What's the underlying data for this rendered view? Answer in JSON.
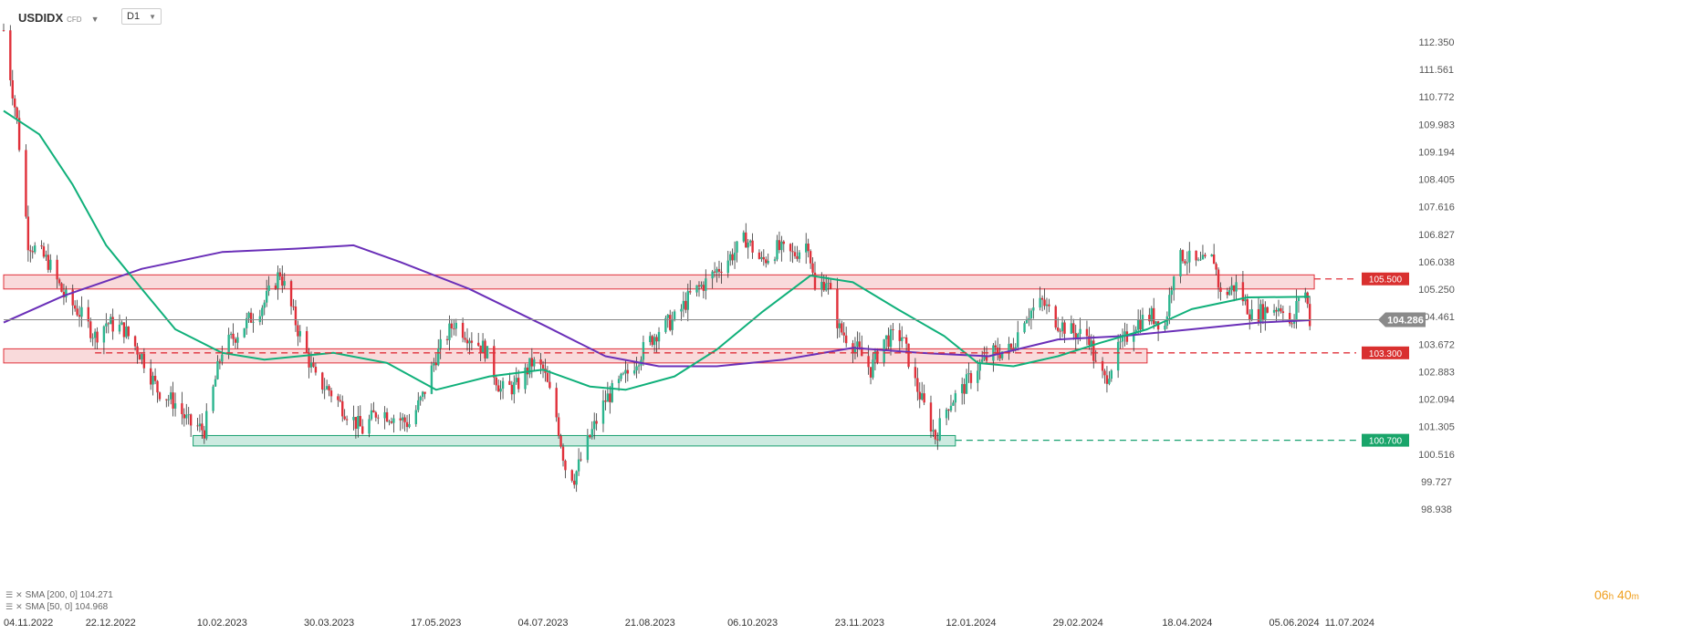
{
  "toolbar": {
    "symbol": "USDIDX",
    "symbol_tag": "CFD",
    "timeframe": "D1"
  },
  "legend": {
    "sma200": "SMA [200, 0] 104.271",
    "sma50": "SMA [50, 0] 104.968"
  },
  "countdown": {
    "hours": "06",
    "hours_unit": "h",
    "minutes": "40",
    "minutes_unit": "m"
  },
  "colors": {
    "bull": "#2bb58e",
    "bear": "#e0303a",
    "sma200": "#6a2fb8",
    "sma50": "#10b07a",
    "resistance": "#e0303a",
    "support": "#18a070",
    "last_price_bg": "#8a8a8a"
  },
  "chart_data": {
    "type": "candlestick",
    "instrument": "USDIDX",
    "timeframe": "D1",
    "y_range": [
      98.6,
      113.2
    ],
    "y_ticks": [
      "112.350",
      "111.561",
      "110.772",
      "109.983",
      "109.194",
      "108.405",
      "107.616",
      "106.827",
      "106.038",
      "105.250",
      "104.461",
      "103.672",
      "102.883",
      "102.094",
      "101.305",
      "100.516",
      "99.727",
      "98.938"
    ],
    "x_range": [
      "2022-11-04",
      "2024-07-11"
    ],
    "x_ticks": [
      {
        "date": "2022-11-04",
        "label": "04.11.2022"
      },
      {
        "date": "2022-12-22",
        "label": "22.12.2022"
      },
      {
        "date": "2023-02-10",
        "label": "10.02.2023"
      },
      {
        "date": "2023-03-30",
        "label": "30.03.2023"
      },
      {
        "date": "2023-05-17",
        "label": "17.05.2023"
      },
      {
        "date": "2023-07-04",
        "label": "04.07.2023"
      },
      {
        "date": "2023-08-21",
        "label": "21.08.2023"
      },
      {
        "date": "2023-10-06",
        "label": "06.10.2023"
      },
      {
        "date": "2023-11-23",
        "label": "23.11.2023"
      },
      {
        "date": "2024-01-12",
        "label": "12.01.2024"
      },
      {
        "date": "2024-02-29",
        "label": "29.02.2024"
      },
      {
        "date": "2024-04-18",
        "label": "18.04.2024"
      },
      {
        "date": "2024-06-05",
        "label": "05.06.2024"
      },
      {
        "date": "2024-07-11",
        "label": "11.07.2024"
      }
    ],
    "price_path": [
      [
        "2022-11-04",
        112.9
      ],
      [
        "2022-11-10",
        110.2
      ],
      [
        "2022-11-15",
        106.6
      ],
      [
        "2022-11-24",
        106.0
      ],
      [
        "2022-12-01",
        105.0
      ],
      [
        "2022-12-08",
        104.5
      ],
      [
        "2022-12-15",
        103.8
      ],
      [
        "2022-12-20",
        104.2
      ],
      [
        "2022-12-28",
        104.0
      ],
      [
        "2023-01-05",
        103.2
      ],
      [
        "2023-01-12",
        102.2
      ],
      [
        "2023-01-20",
        101.8
      ],
      [
        "2023-01-26",
        101.2
      ],
      [
        "2023-02-02",
        101.0
      ],
      [
        "2023-02-10",
        103.4
      ],
      [
        "2023-02-17",
        103.9
      ],
      [
        "2023-03-01",
        104.8
      ],
      [
        "2023-03-08",
        105.7
      ],
      [
        "2023-03-16",
        104.0
      ],
      [
        "2023-03-24",
        102.5
      ],
      [
        "2023-03-30",
        102.2
      ],
      [
        "2023-04-06",
        101.6
      ],
      [
        "2023-04-14",
        101.0
      ],
      [
        "2023-04-21",
        101.6
      ],
      [
        "2023-04-28",
        101.4
      ],
      [
        "2023-05-05",
        101.2
      ],
      [
        "2023-05-11",
        102.0
      ],
      [
        "2023-05-17",
        103.2
      ],
      [
        "2023-05-25",
        104.2
      ],
      [
        "2023-06-01",
        103.8
      ],
      [
        "2023-06-08",
        103.4
      ],
      [
        "2023-06-15",
        102.2
      ],
      [
        "2023-06-22",
        102.3
      ],
      [
        "2023-06-29",
        103.0
      ],
      [
        "2023-07-04",
        102.8
      ],
      [
        "2023-07-10",
        101.4
      ],
      [
        "2023-07-14",
        99.9
      ],
      [
        "2023-07-18",
        99.6
      ],
      [
        "2023-07-25",
        100.8
      ],
      [
        "2023-08-01",
        101.9
      ],
      [
        "2023-08-10",
        102.6
      ],
      [
        "2023-08-18",
        103.4
      ],
      [
        "2023-08-25",
        104.0
      ],
      [
        "2023-09-01",
        104.3
      ],
      [
        "2023-09-08",
        105.0
      ],
      [
        "2023-09-15",
        105.4
      ],
      [
        "2023-09-22",
        105.9
      ],
      [
        "2023-09-28",
        106.3
      ],
      [
        "2023-10-03",
        106.7
      ],
      [
        "2023-10-10",
        106.0
      ],
      [
        "2023-10-17",
        106.4
      ],
      [
        "2023-10-24",
        106.2
      ],
      [
        "2023-10-31",
        106.6
      ],
      [
        "2023-11-03",
        105.1
      ],
      [
        "2023-11-08",
        105.5
      ],
      [
        "2023-11-14",
        104.0
      ],
      [
        "2023-11-21",
        103.5
      ],
      [
        "2023-11-28",
        102.8
      ],
      [
        "2023-12-04",
        103.7
      ],
      [
        "2023-12-12",
        103.8
      ],
      [
        "2023-12-18",
        102.4
      ],
      [
        "2023-12-27",
        100.8
      ],
      [
        "2024-01-02",
        101.8
      ],
      [
        "2024-01-08",
        102.2
      ],
      [
        "2024-01-15",
        102.9
      ],
      [
        "2024-01-22",
        103.3
      ],
      [
        "2024-01-30",
        103.4
      ],
      [
        "2024-02-05",
        104.4
      ],
      [
        "2024-02-13",
        104.8
      ],
      [
        "2024-02-20",
        104.2
      ],
      [
        "2024-02-27",
        103.9
      ],
      [
        "2024-03-05",
        103.8
      ],
      [
        "2024-03-08",
        102.9
      ],
      [
        "2024-03-12",
        102.5
      ],
      [
        "2024-03-19",
        103.5
      ],
      [
        "2024-03-26",
        104.2
      ],
      [
        "2024-04-02",
        104.4
      ],
      [
        "2024-04-08",
        104.1
      ],
      [
        "2024-04-12",
        105.8
      ],
      [
        "2024-04-16",
        106.2
      ],
      [
        "2024-04-23",
        105.9
      ],
      [
        "2024-04-30",
        106.1
      ],
      [
        "2024-05-03",
        105.0
      ],
      [
        "2024-05-10",
        105.3
      ],
      [
        "2024-05-17",
        104.4
      ],
      [
        "2024-05-24",
        104.6
      ],
      [
        "2024-05-31",
        104.7
      ],
      [
        "2024-06-04",
        104.0
      ],
      [
        "2024-06-07",
        105.0
      ],
      [
        "2024-06-10",
        105.1
      ],
      [
        "2024-06-12",
        104.286
      ]
    ],
    "sma200_path": [
      [
        "2022-11-04",
        104.2
      ],
      [
        "2022-12-01",
        105.0
      ],
      [
        "2023-01-05",
        105.8
      ],
      [
        "2023-02-10",
        106.3
      ],
      [
        "2023-03-15",
        106.4
      ],
      [
        "2023-04-10",
        106.5
      ],
      [
        "2023-05-01",
        106.0
      ],
      [
        "2023-06-01",
        105.2
      ],
      [
        "2023-07-05",
        104.1
      ],
      [
        "2023-08-01",
        103.2
      ],
      [
        "2023-08-25",
        102.9
      ],
      [
        "2023-09-20",
        102.9
      ],
      [
        "2023-10-20",
        103.1
      ],
      [
        "2023-11-20",
        103.45
      ],
      [
        "2023-12-20",
        103.3
      ],
      [
        "2024-01-20",
        103.2
      ],
      [
        "2024-02-20",
        103.7
      ],
      [
        "2024-03-20",
        103.8
      ],
      [
        "2024-04-20",
        104.0
      ],
      [
        "2024-05-20",
        104.2
      ],
      [
        "2024-06-12",
        104.271
      ]
    ],
    "sma50_path": [
      [
        "2022-11-04",
        110.5
      ],
      [
        "2022-11-20",
        109.8
      ],
      [
        "2022-12-05",
        108.3
      ],
      [
        "2022-12-20",
        106.5
      ],
      [
        "2023-01-05",
        105.2
      ],
      [
        "2023-01-20",
        104.0
      ],
      [
        "2023-02-10",
        103.3
      ],
      [
        "2023-03-01",
        103.1
      ],
      [
        "2023-04-01",
        103.3
      ],
      [
        "2023-04-25",
        103.0
      ],
      [
        "2023-05-17",
        102.2
      ],
      [
        "2023-06-10",
        102.6
      ],
      [
        "2023-07-04",
        102.8
      ],
      [
        "2023-07-25",
        102.3
      ],
      [
        "2023-08-10",
        102.2
      ],
      [
        "2023-09-01",
        102.6
      ],
      [
        "2023-09-20",
        103.4
      ],
      [
        "2023-10-10",
        104.5
      ],
      [
        "2023-11-01",
        105.6
      ],
      [
        "2023-11-20",
        105.4
      ],
      [
        "2023-12-10",
        104.6
      ],
      [
        "2023-12-31",
        103.8
      ],
      [
        "2024-01-15",
        103.0
      ],
      [
        "2024-01-31",
        102.9
      ],
      [
        "2024-02-20",
        103.2
      ],
      [
        "2024-03-10",
        103.6
      ],
      [
        "2024-03-31",
        104.0
      ],
      [
        "2024-04-20",
        104.6
      ],
      [
        "2024-05-15",
        104.95
      ],
      [
        "2024-06-12",
        104.968
      ]
    ],
    "levels": [
      {
        "name": "resistance",
        "value": 105.5,
        "label": "105.500",
        "zone": [
          105.2,
          105.62
        ],
        "zone_start": "2022-11-04",
        "zone_end": "2024-06-14",
        "line_start": "2024-06-14",
        "style": "dashed"
      },
      {
        "name": "support",
        "value": 103.3,
        "label": "103.300",
        "zone": [
          103.0,
          103.42
        ],
        "zone_start": "2022-11-04",
        "zone_end": "2024-03-31",
        "line_start": "2022-12-15",
        "style": "dashed"
      },
      {
        "name": "support-low",
        "value": 100.7,
        "label": "100.700",
        "zone": [
          100.53,
          100.84
        ],
        "zone_start": "2023-01-28",
        "zone_end": "2024-01-05",
        "line_start": "2024-01-05",
        "style": "dashed"
      }
    ],
    "last_price": 104.286,
    "last_price_label": "104.286",
    "grid": false,
    "legend_position": "bottom-left"
  }
}
